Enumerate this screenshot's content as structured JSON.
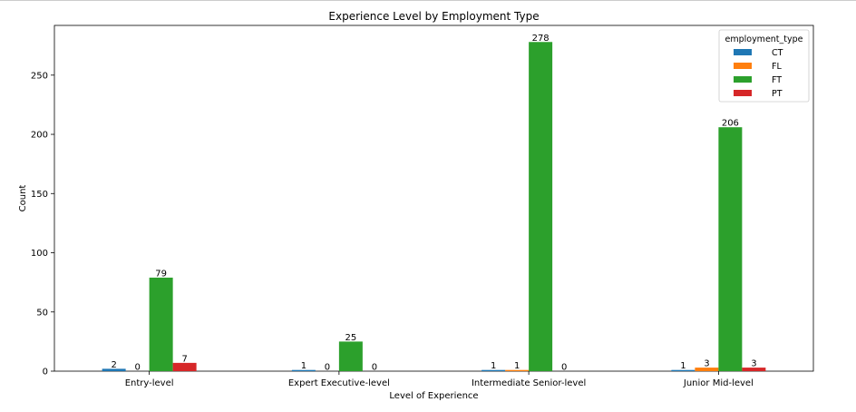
{
  "chart_data": {
    "type": "bar",
    "title": "Experience Level by Employment Type",
    "xlabel": "Level of Experience",
    "ylabel": "Count",
    "categories": [
      "Entry-level",
      "Expert Executive-level",
      "Intermediate Senior-level",
      "Junior Mid-level"
    ],
    "series": [
      {
        "name": "CT",
        "values": [
          2,
          1,
          1,
          1
        ],
        "color": "#1f77b4"
      },
      {
        "name": "FL",
        "values": [
          0,
          0,
          1,
          3
        ],
        "color": "#ff7f0e"
      },
      {
        "name": "FT",
        "values": [
          79,
          25,
          278,
          206
        ],
        "color": "#2ca02c"
      },
      {
        "name": "PT",
        "values": [
          7,
          0,
          0,
          3
        ],
        "color": "#d62728"
      }
    ],
    "ylim": [
      0,
      292
    ],
    "yticks": [
      0,
      50,
      100,
      150,
      200,
      250
    ],
    "grid": false,
    "legend": {
      "title": "employment_type",
      "placement": "top-right"
    }
  }
}
